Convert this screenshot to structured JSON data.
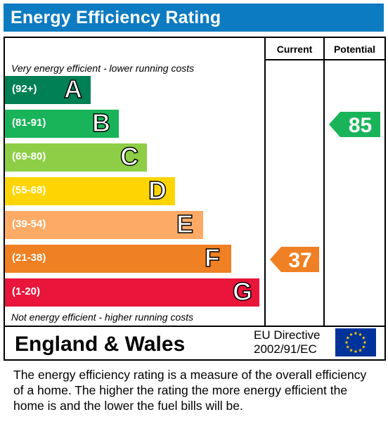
{
  "header": {
    "title": "Energy Efficiency Rating"
  },
  "columns": {
    "current": "Current",
    "potential": "Potential"
  },
  "captions": {
    "top": "Very energy efficient - lower running costs",
    "bottom": "Not energy efficient - higher running costs"
  },
  "chart_data": {
    "type": "bar",
    "title": "Energy Efficiency Rating",
    "bands": [
      {
        "letter": "A",
        "range": "(92+)",
        "color": "#008054"
      },
      {
        "letter": "B",
        "range": "(81-91)",
        "color": "#19b459"
      },
      {
        "letter": "C",
        "range": "(69-80)",
        "color": "#8dce46"
      },
      {
        "letter": "D",
        "range": "(55-68)",
        "color": "#ffd500"
      },
      {
        "letter": "E",
        "range": "(39-54)",
        "color": "#fcaa65"
      },
      {
        "letter": "F",
        "range": "(21-38)",
        "color": "#ef8023"
      },
      {
        "letter": "G",
        "range": "(1-20)",
        "color": "#e9153b"
      }
    ],
    "current": {
      "value": 37,
      "band": "F",
      "color": "#ef8023"
    },
    "potential": {
      "value": 85,
      "band": "B",
      "color": "#19b459"
    }
  },
  "footer": {
    "country": "England & Wales",
    "directive_line1": "EU Directive",
    "directive_line2": "2002/91/EC",
    "flag_icon": "eu-flag-icon"
  },
  "description": "The energy efficiency rating is a measure of the overall efficiency of a home.  The higher the rating the more energy efficient the home is and the lower the fuel bills will be."
}
